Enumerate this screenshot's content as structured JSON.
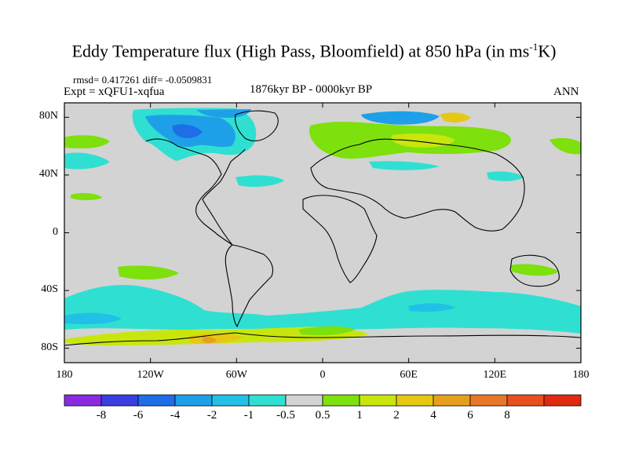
{
  "title": {
    "main": "Eddy Temperature flux (High Pass, Bloomfield) at 850 hPa (in ms",
    "superscript": "-1",
    "unit_tail": "K)"
  },
  "stats": "rmsd= 0.417261 diff= -0.0509831",
  "experiment": "Expt = xQFU1-xqfua",
  "period": "1876kyr BP - 0000kyr BP",
  "season": "ANN",
  "map": {
    "projection": "cylindrical equidistant",
    "lon_range": [
      -180,
      180
    ],
    "lat_range": [
      -90,
      90
    ],
    "background_color": "#d3d3d3",
    "lat_ticks": [
      {
        "value": 80,
        "label": "80N"
      },
      {
        "value": 40,
        "label": "40N"
      },
      {
        "value": 0,
        "label": "0"
      },
      {
        "value": -40,
        "label": "40S"
      },
      {
        "value": -80,
        "label": "80S"
      }
    ],
    "lon_ticks": [
      {
        "value": -180,
        "label": "180"
      },
      {
        "value": -120,
        "label": "120W"
      },
      {
        "value": -60,
        "label": "60W"
      },
      {
        "value": 0,
        "label": "0"
      },
      {
        "value": 60,
        "label": "60E"
      },
      {
        "value": 120,
        "label": "120E"
      },
      {
        "value": 180,
        "label": "180"
      }
    ]
  },
  "colorbar": {
    "colors": [
      "#8a2be2",
      "#3a3ee0",
      "#1e6ee8",
      "#1ea0e8",
      "#22c0e6",
      "#2fe0d2",
      "#d3d3d3",
      "#7ee00c",
      "#c8e60e",
      "#e6c814",
      "#e6a01e",
      "#e87828",
      "#e85020",
      "#e02a10"
    ],
    "labels": [
      "-8",
      "-6",
      "-4",
      "-2",
      "-1",
      "-0.5",
      "0.5",
      "1",
      "2",
      "4",
      "6",
      "8"
    ]
  }
}
